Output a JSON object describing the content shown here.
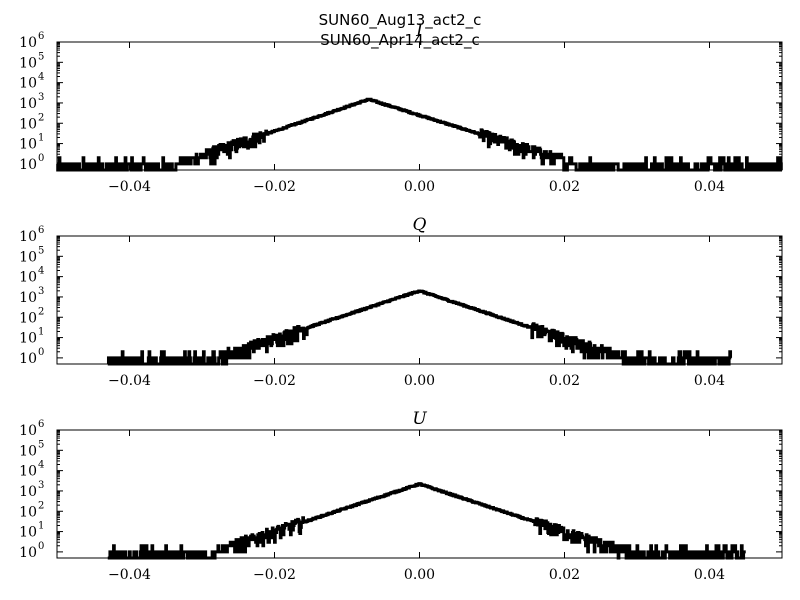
{
  "figure": {
    "title_lines": [
      "SUN60_Aug13_act2_c",
      "SUN60_Apr14_act2_c"
    ]
  },
  "chart_data": [
    {
      "type": "line",
      "title": "I",
      "xlim": [
        -0.05,
        0.05
      ],
      "ylim": [
        0.5,
        1000000
      ],
      "yscale": "log",
      "xticks": [
        "−0.04",
        "−0.02",
        "0.00",
        "0.02",
        "0.04"
      ],
      "xtick_values": [
        -0.04,
        -0.02,
        0.0,
        0.02,
        0.04
      ],
      "yticks_exponents": [
        "0",
        "1",
        "2",
        "3",
        "4",
        "5",
        "6"
      ],
      "grid": false,
      "series": [
        {
          "center": -0.007,
          "peak": 1500,
          "scale_left": 0.0036,
          "scale_right": 0.0039,
          "support": [
            -0.05,
            0.05
          ],
          "noise_floor": 1
        }
      ]
    },
    {
      "type": "line",
      "title": "Q",
      "xlim": [
        -0.05,
        0.05
      ],
      "ylim": [
        0.5,
        1000000
      ],
      "yscale": "log",
      "xticks": [
        "−0.04",
        "−0.02",
        "0.00",
        "0.02",
        "0.04"
      ],
      "xtick_values": [
        -0.04,
        -0.02,
        0.0,
        0.02,
        0.04
      ],
      "yticks_exponents": [
        "0",
        "1",
        "2",
        "3",
        "4",
        "5",
        "6"
      ],
      "grid": false,
      "series": [
        {
          "center": 0.0,
          "peak": 2000,
          "scale_left": 0.0037,
          "scale_right": 0.0037,
          "support": [
            -0.043,
            0.043
          ],
          "noise_floor": 1
        }
      ]
    },
    {
      "type": "line",
      "title": "U",
      "xlim": [
        -0.05,
        0.05
      ],
      "ylim": [
        0.5,
        1000000
      ],
      "yscale": "log",
      "xticks": [
        "−0.04",
        "−0.02",
        "0.00",
        "0.02",
        "0.04"
      ],
      "xtick_values": [
        -0.04,
        -0.02,
        0.0,
        0.02,
        0.04
      ],
      "yticks_exponents": [
        "0",
        "1",
        "2",
        "3",
        "4",
        "5",
        "6"
      ],
      "grid": false,
      "series": [
        {
          "center": 0.0,
          "peak": 2200,
          "scale_left": 0.0037,
          "scale_right": 0.0037,
          "support": [
            -0.043,
            0.045
          ],
          "noise_floor": 1
        }
      ]
    }
  ]
}
